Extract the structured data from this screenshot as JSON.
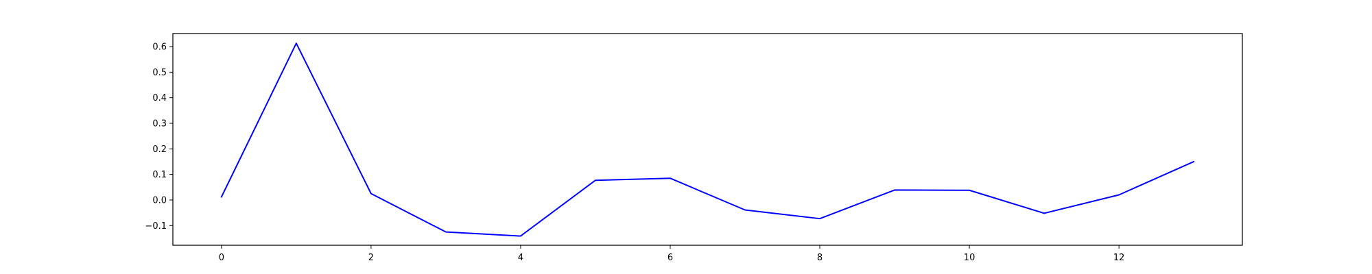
{
  "chart_data": {
    "type": "line",
    "title": "",
    "xlabel": "",
    "ylabel": "",
    "x": [
      0,
      1,
      2,
      3,
      4,
      5,
      6,
      7,
      8,
      9,
      10,
      11,
      12,
      13
    ],
    "series": [
      {
        "color": "#0000ff",
        "values": [
          0.012,
          0.613,
          0.025,
          -0.125,
          -0.141,
          0.077,
          0.085,
          -0.039,
          -0.073,
          0.039,
          0.038,
          -0.052,
          0.02,
          0.15
        ]
      }
    ],
    "xlim": [
      -0.65,
      13.65
    ],
    "ylim": [
      -0.177,
      0.651
    ],
    "xticks": [
      0,
      2,
      4,
      6,
      8,
      10,
      12
    ],
    "xtick_labels": [
      "0",
      "2",
      "4",
      "6",
      "8",
      "10",
      "12"
    ],
    "yticks": [
      -0.1,
      0.0,
      0.1,
      0.2,
      0.3,
      0.4,
      0.5,
      0.6
    ],
    "ytick_labels": [
      "−0.1",
      "0.0",
      "0.1",
      "0.2",
      "0.3",
      "0.4",
      "0.5",
      "0.6"
    ],
    "grid": false,
    "legend": "none"
  }
}
